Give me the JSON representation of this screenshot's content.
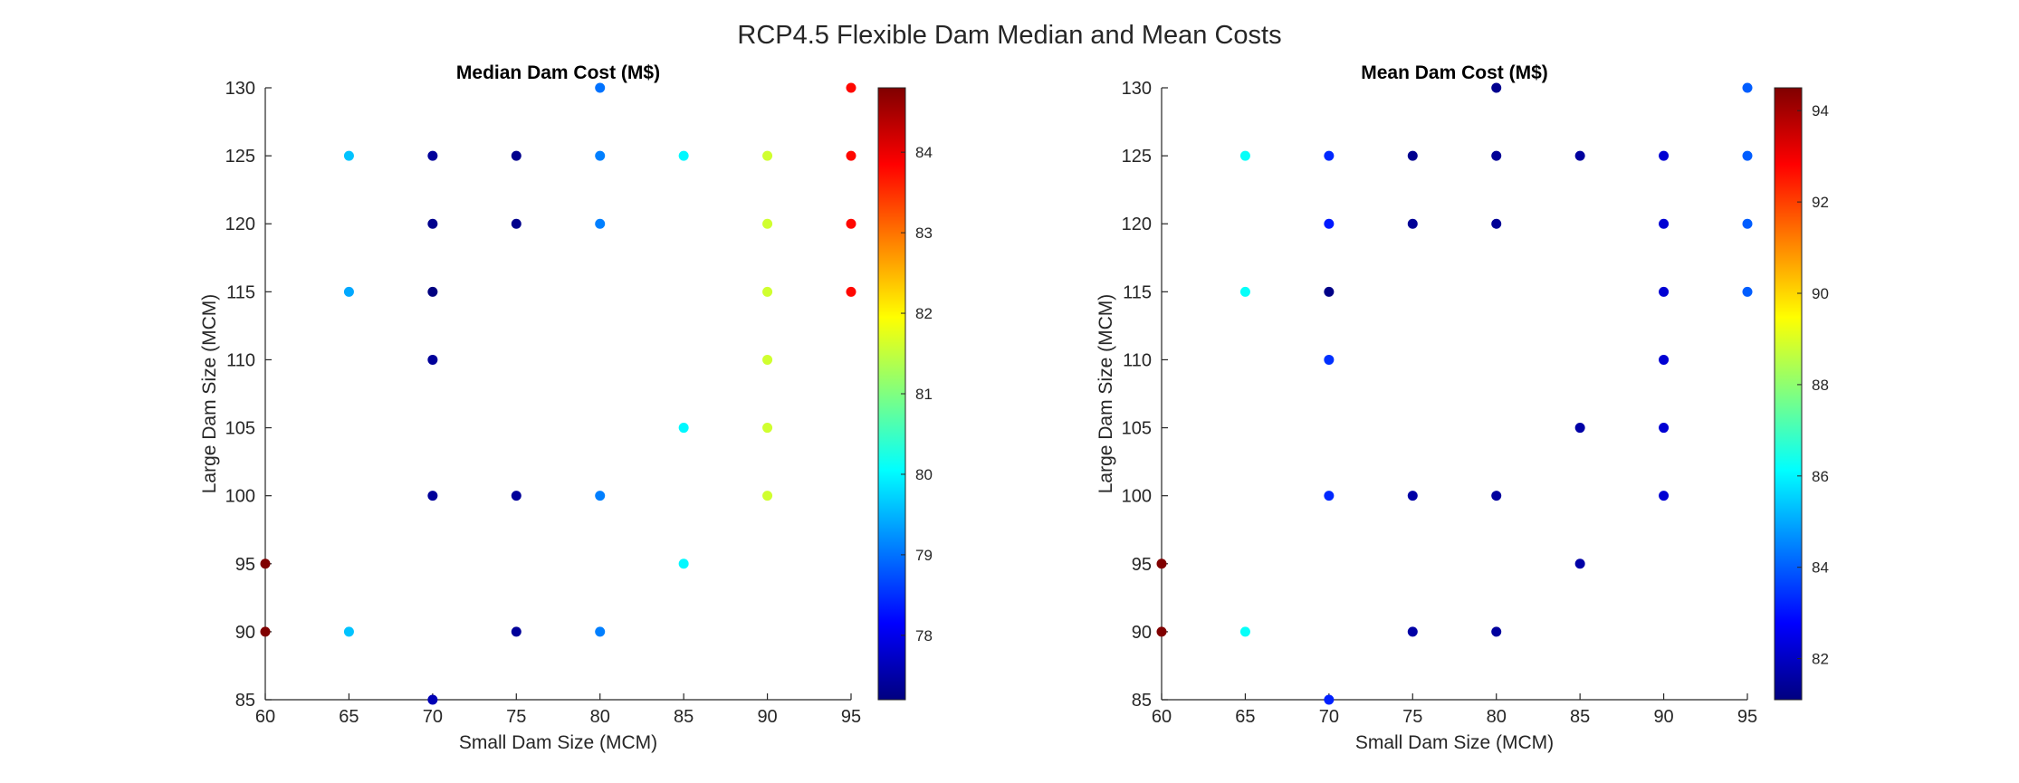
{
  "suptitle": "RCP4.5 Flexible Dam Median and Mean Costs",
  "chart_data": [
    {
      "type": "scatter",
      "title": "Median Dam Cost (M$)",
      "xlabel": "Small Dam Size (MCM)",
      "ylabel": "Large Dam Size (MCM)",
      "xlim": [
        60,
        95
      ],
      "ylim": [
        85,
        130
      ],
      "xticks": [
        60,
        65,
        70,
        75,
        80,
        85,
        90,
        95
      ],
      "yticks": [
        85,
        90,
        95,
        100,
        105,
        110,
        115,
        120,
        125,
        130
      ],
      "colormap": "jet",
      "clim": [
        77.2,
        84.8
      ],
      "colorbar_ticks": [
        78,
        79,
        80,
        81,
        82,
        83,
        84
      ],
      "colorbar_location": "right",
      "points": [
        {
          "x": 60,
          "y": 90,
          "c": 84.8
        },
        {
          "x": 60,
          "y": 95,
          "c": 84.8
        },
        {
          "x": 65,
          "y": 90,
          "c": 79.6
        },
        {
          "x": 65,
          "y": 115,
          "c": 79.4
        },
        {
          "x": 65,
          "y": 125,
          "c": 79.6
        },
        {
          "x": 70,
          "y": 85,
          "c": 77.6
        },
        {
          "x": 70,
          "y": 100,
          "c": 77.4
        },
        {
          "x": 70,
          "y": 110,
          "c": 77.4
        },
        {
          "x": 70,
          "y": 115,
          "c": 77.2
        },
        {
          "x": 70,
          "y": 120,
          "c": 77.3
        },
        {
          "x": 70,
          "y": 125,
          "c": 77.4
        },
        {
          "x": 75,
          "y": 90,
          "c": 77.4
        },
        {
          "x": 75,
          "y": 100,
          "c": 77.4
        },
        {
          "x": 75,
          "y": 120,
          "c": 77.3
        },
        {
          "x": 75,
          "y": 125,
          "c": 77.3
        },
        {
          "x": 80,
          "y": 90,
          "c": 79.1
        },
        {
          "x": 80,
          "y": 100,
          "c": 79.1
        },
        {
          "x": 80,
          "y": 120,
          "c": 79.1
        },
        {
          "x": 80,
          "y": 125,
          "c": 79.1
        },
        {
          "x": 80,
          "y": 130,
          "c": 79.0
        },
        {
          "x": 85,
          "y": 95,
          "c": 80.0
        },
        {
          "x": 85,
          "y": 105,
          "c": 80.0
        },
        {
          "x": 85,
          "y": 125,
          "c": 80.0
        },
        {
          "x": 90,
          "y": 100,
          "c": 81.6
        },
        {
          "x": 90,
          "y": 105,
          "c": 81.6
        },
        {
          "x": 90,
          "y": 110,
          "c": 81.6
        },
        {
          "x": 90,
          "y": 115,
          "c": 81.6
        },
        {
          "x": 90,
          "y": 120,
          "c": 81.6
        },
        {
          "x": 90,
          "y": 125,
          "c": 81.6
        },
        {
          "x": 95,
          "y": 115,
          "c": 83.8
        },
        {
          "x": 95,
          "y": 120,
          "c": 83.8
        },
        {
          "x": 95,
          "y": 125,
          "c": 83.8
        },
        {
          "x": 95,
          "y": 130,
          "c": 83.8
        }
      ]
    },
    {
      "type": "scatter",
      "title": "Mean Dam Cost (M$)",
      "xlabel": "Small Dam Size (MCM)",
      "ylabel": "Large Dam Size (MCM)",
      "xlim": [
        60,
        95
      ],
      "ylim": [
        85,
        130
      ],
      "xticks": [
        60,
        65,
        70,
        75,
        80,
        85,
        90,
        95
      ],
      "yticks": [
        85,
        90,
        95,
        100,
        105,
        110,
        115,
        120,
        125,
        130
      ],
      "colormap": "jet",
      "clim": [
        81.1,
        94.5
      ],
      "colorbar_ticks": [
        82,
        84,
        86,
        88,
        90,
        92,
        94
      ],
      "colorbar_location": "right",
      "points": [
        {
          "x": 60,
          "y": 90,
          "c": 94.5
        },
        {
          "x": 60,
          "y": 95,
          "c": 94.5
        },
        {
          "x": 65,
          "y": 90,
          "c": 86.2
        },
        {
          "x": 65,
          "y": 115,
          "c": 86.2
        },
        {
          "x": 65,
          "y": 125,
          "c": 86.2
        },
        {
          "x": 70,
          "y": 85,
          "c": 83.2
        },
        {
          "x": 70,
          "y": 100,
          "c": 83.3
        },
        {
          "x": 70,
          "y": 110,
          "c": 83.4
        },
        {
          "x": 70,
          "y": 115,
          "c": 81.2
        },
        {
          "x": 70,
          "y": 120,
          "c": 83.1
        },
        {
          "x": 70,
          "y": 125,
          "c": 83.3
        },
        {
          "x": 75,
          "y": 90,
          "c": 81.6
        },
        {
          "x": 75,
          "y": 100,
          "c": 81.6
        },
        {
          "x": 75,
          "y": 120,
          "c": 81.4
        },
        {
          "x": 75,
          "y": 125,
          "c": 81.3
        },
        {
          "x": 80,
          "y": 90,
          "c": 81.5
        },
        {
          "x": 80,
          "y": 100,
          "c": 81.5
        },
        {
          "x": 80,
          "y": 120,
          "c": 81.4
        },
        {
          "x": 80,
          "y": 125,
          "c": 81.4
        },
        {
          "x": 80,
          "y": 130,
          "c": 81.3
        },
        {
          "x": 85,
          "y": 95,
          "c": 81.6
        },
        {
          "x": 85,
          "y": 105,
          "c": 81.6
        },
        {
          "x": 85,
          "y": 125,
          "c": 81.5
        },
        {
          "x": 90,
          "y": 100,
          "c": 82.2
        },
        {
          "x": 90,
          "y": 105,
          "c": 82.2
        },
        {
          "x": 90,
          "y": 110,
          "c": 82.2
        },
        {
          "x": 90,
          "y": 115,
          "c": 82.2
        },
        {
          "x": 90,
          "y": 120,
          "c": 82.2
        },
        {
          "x": 90,
          "y": 125,
          "c": 82.2
        },
        {
          "x": 95,
          "y": 115,
          "c": 84.0
        },
        {
          "x": 95,
          "y": 120,
          "c": 84.0
        },
        {
          "x": 95,
          "y": 125,
          "c": 84.0
        },
        {
          "x": 95,
          "y": 130,
          "c": 84.0
        }
      ]
    }
  ]
}
